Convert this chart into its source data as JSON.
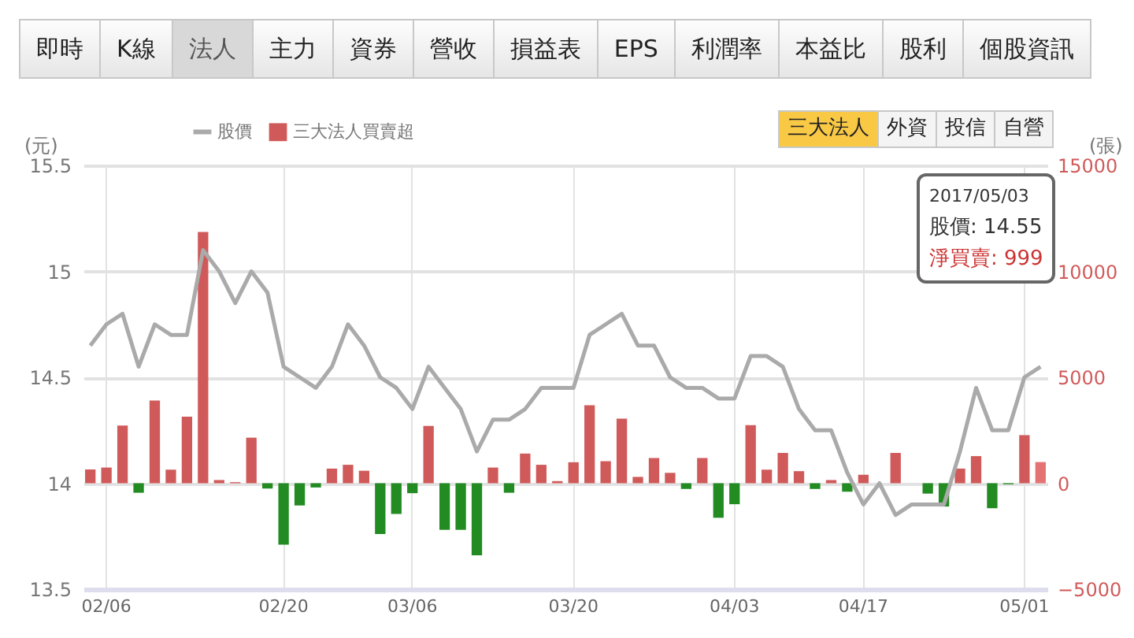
{
  "chart_data": {
    "type": "bar",
    "ylabel": "(元)",
    "y2label": "(張)",
    "annotations": [
      "即時",
      "K線",
      "法人",
      "主力",
      "資券",
      "營收",
      "損益表",
      "EPS",
      "利潤率",
      "本益比",
      "股利",
      "個股資訊",
      "三大法人",
      "外資",
      "投信",
      "自營",
      "2017/05/03",
      "股價: 14.55",
      "淨買賣: 999"
    ],
    "categories": [
      null,
      "02/06",
      null,
      null,
      null,
      null,
      null,
      null,
      null,
      null,
      null,
      null,
      "02/20",
      null,
      null,
      null,
      null,
      null,
      null,
      null,
      "03/06",
      null,
      null,
      null,
      null,
      null,
      null,
      null,
      null,
      null,
      "03/20",
      null,
      null,
      null,
      null,
      null,
      null,
      null,
      null,
      null,
      "04/03",
      null,
      null,
      null,
      null,
      null,
      null,
      null,
      "04/17",
      null,
      null,
      null,
      null,
      null,
      null,
      null,
      null,
      null,
      "05/01",
      null
    ],
    "series": [
      {
        "name": "股價",
        "type": "line",
        "color": "#aaaaaa",
        "values": [
          14.65,
          14.75,
          14.8,
          14.55,
          14.75,
          14.7,
          14.7,
          15.1,
          15.0,
          14.85,
          15.0,
          14.9,
          14.55,
          14.5,
          14.45,
          14.55,
          14.75,
          14.65,
          14.5,
          14.45,
          14.35,
          14.55,
          14.45,
          14.35,
          14.15,
          14.3,
          14.3,
          14.35,
          14.45,
          14.45,
          14.45,
          14.7,
          14.75,
          14.8,
          14.65,
          14.65,
          14.5,
          14.45,
          14.45,
          14.4,
          14.4,
          14.6,
          14.6,
          14.55,
          14.35,
          14.25,
          14.25,
          14.05,
          13.9,
          14.0,
          13.85,
          13.9,
          13.9,
          13.9,
          14.15,
          14.45,
          14.25,
          14.25,
          14.5,
          14.55
        ]
      },
      {
        "name": "三大法人買賣超",
        "axis": "y2",
        "color": "#d05a5a",
        "values": [
          650,
          740,
          2720,
          -450,
          3900,
          640,
          3140,
          11860,
          150,
          50,
          2150,
          -250,
          -2900,
          -1050,
          -200,
          690,
          870,
          590,
          -2400,
          -1450,
          -470,
          2700,
          -2200,
          -2200,
          -3400,
          740,
          -450,
          1400,
          870,
          100,
          990,
          3680,
          1040,
          3050,
          300,
          1190,
          490,
          -270,
          1190,
          -1630,
          -990,
          2740,
          640,
          1430,
          570,
          -270,
          150,
          -400,
          400,
          0,
          1430,
          0,
          -490,
          -1100,
          690,
          1280,
          -1180,
          -50,
          2270,
          999
        ],
        "colors": [
          "#d05a5a",
          "#d05a5a",
          "#d05a5a",
          "#228b22",
          "#d05a5a",
          "#d05a5a",
          "#d05a5a",
          "#d05a5a",
          "#d05a5a",
          "#d05a5a",
          "#d05a5a",
          "#228b22",
          "#228b22",
          "#228b22",
          "#228b22",
          "#d05a5a",
          "#d05a5a",
          "#d05a5a",
          "#228b22",
          "#228b22",
          "#228b22",
          "#d05a5a",
          "#228b22",
          "#228b22",
          "#228b22",
          "#d05a5a",
          "#228b22",
          "#d05a5a",
          "#d05a5a",
          "#d05a5a",
          "#d05a5a",
          "#d05a5a",
          "#d05a5a",
          "#d05a5a",
          "#d05a5a",
          "#d05a5a",
          "#d05a5a",
          "#228b22",
          "#d05a5a",
          "#228b22",
          "#228b22",
          "#d05a5a",
          "#d05a5a",
          "#d05a5a",
          "#d05a5a",
          "#228b22",
          "#d05a5a",
          "#228b22",
          "#d05a5a",
          "#d05a5a",
          "#d05a5a",
          "#228b22",
          "#228b22",
          "#228b22",
          "#d05a5a",
          "#d05a5a",
          "#228b22",
          "#228b22",
          "#d05a5a",
          "#e57373"
        ]
      }
    ],
    "ylim": [
      13.5,
      15.5
    ],
    "yticks": [
      13.5,
      14,
      14.5,
      15,
      15.5
    ],
    "y2lim": [
      -5000,
      15000
    ],
    "y2ticks": [
      -5000,
      0,
      5000,
      10000,
      15000
    ],
    "grid": true,
    "legend": "top"
  }
}
